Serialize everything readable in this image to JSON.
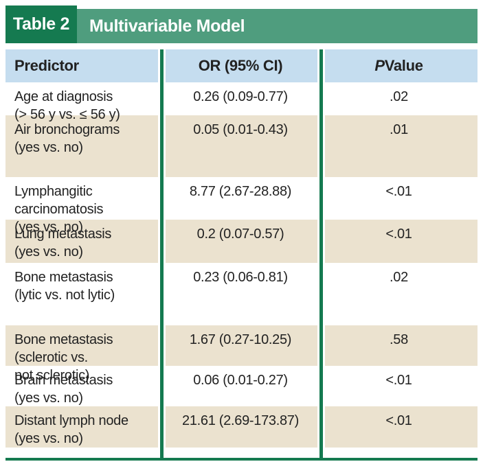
{
  "header": {
    "label": "Table 2",
    "title": "Multivariable Model"
  },
  "columns": {
    "predictor": "Predictor",
    "or_ci": "OR (95% CI)",
    "p_italic": "P",
    "p_rest": "Value"
  },
  "rows": [
    {
      "predictor": "Age at diagnosis\n(> 56 y vs. ≤ 56 y)",
      "or_ci": "0.26 (0.09-0.77)",
      "p": ".02"
    },
    {
      "predictor": "Air bronchograms\n(yes vs. no)",
      "or_ci": "0.05 (0.01-0.43)",
      "p": ".01"
    },
    {
      "predictor": "Lymphangitic\ncarcinomatosis\n(yes vs. no)",
      "or_ci": "8.77 (2.67-28.88)",
      "p": "<.01"
    },
    {
      "predictor": "Lung metastasis\n(yes vs. no)",
      "or_ci": "0.2 (0.07-0.57)",
      "p": "<.01"
    },
    {
      "predictor": "Bone metastasis\n(lytic vs. not lytic)",
      "or_ci": "0.23 (0.06-0.81)",
      "p": ".02"
    },
    {
      "predictor": "Bone metastasis\n(sclerotic vs.\nnot sclerotic)",
      "or_ci": "1.67 (0.27-10.25)",
      "p": ".58"
    },
    {
      "predictor": "Brain metastasis\n(yes vs. no)",
      "or_ci": "0.06 (0.01-0.27)",
      "p": "<.01"
    },
    {
      "predictor": "Distant lymph node\n(yes vs. no)",
      "or_ci": "21.61 (2.69-173.87)",
      "p": "<.01"
    }
  ],
  "colors": {
    "dark_green": "#157a50",
    "sage_green": "#4f9d7e",
    "header_blue": "#c5ddef",
    "row_tan": "#ebe2cf",
    "row_white": "#ffffff",
    "text": "#222222"
  }
}
